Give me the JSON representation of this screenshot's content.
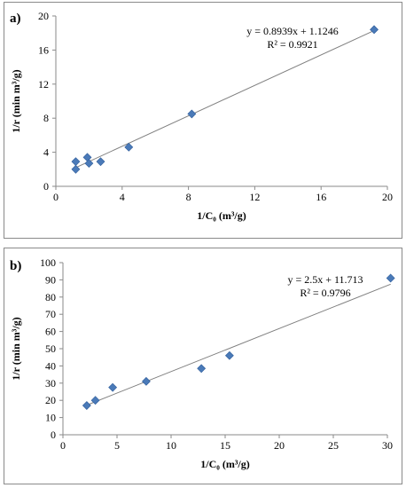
{
  "chart_data": [
    {
      "type": "scatter",
      "panel_label": "a)",
      "xlabel": "1/C₀ (m³/g)",
      "ylabel": "1/r (min m³/g)",
      "xlim": [
        0,
        20
      ],
      "ylim": [
        0,
        20
      ],
      "xticks": [
        0,
        4,
        8,
        12,
        16,
        20
      ],
      "yticks": [
        0,
        4,
        8,
        12,
        16,
        20
      ],
      "grid": false,
      "marker_color": "#4a7ab8",
      "line_color": "#808080",
      "points": [
        {
          "x": 1.2,
          "y": 2.0
        },
        {
          "x": 1.2,
          "y": 2.9
        },
        {
          "x": 1.9,
          "y": 3.4
        },
        {
          "x": 2.0,
          "y": 2.7
        },
        {
          "x": 2.7,
          "y": 2.9
        },
        {
          "x": 4.4,
          "y": 4.6
        },
        {
          "x": 8.2,
          "y": 8.5
        },
        {
          "x": 19.2,
          "y": 18.4
        }
      ],
      "fit": {
        "slope": 0.8939,
        "intercept": 1.1246,
        "x_range": [
          1.2,
          19.2
        ]
      },
      "equation": "y = 0.8939x + 1.1246",
      "r2": "R² = 0.9921"
    },
    {
      "type": "scatter",
      "panel_label": "b)",
      "xlabel": "1/C₀ (m³/g)",
      "ylabel": "1/r (min m³/g)",
      "xlim": [
        0,
        30
      ],
      "ylim": [
        0,
        100
      ],
      "xticks": [
        0,
        5,
        10,
        15,
        20,
        25,
        30
      ],
      "yticks": [
        0,
        10,
        20,
        30,
        40,
        50,
        60,
        70,
        80,
        90,
        100
      ],
      "grid": false,
      "marker_color": "#4a7ab8",
      "line_color": "#808080",
      "points": [
        {
          "x": 2.2,
          "y": 17
        },
        {
          "x": 3.0,
          "y": 20
        },
        {
          "x": 4.6,
          "y": 27.5
        },
        {
          "x": 7.7,
          "y": 31
        },
        {
          "x": 12.8,
          "y": 38.5
        },
        {
          "x": 15.4,
          "y": 46
        },
        {
          "x": 30.3,
          "y": 91
        }
      ],
      "fit": {
        "slope": 2.5,
        "intercept": 11.713,
        "x_range": [
          2.2,
          30.3
        ]
      },
      "equation": "y = 2.5x + 11.713",
      "r2": "R² = 0.9796"
    }
  ]
}
